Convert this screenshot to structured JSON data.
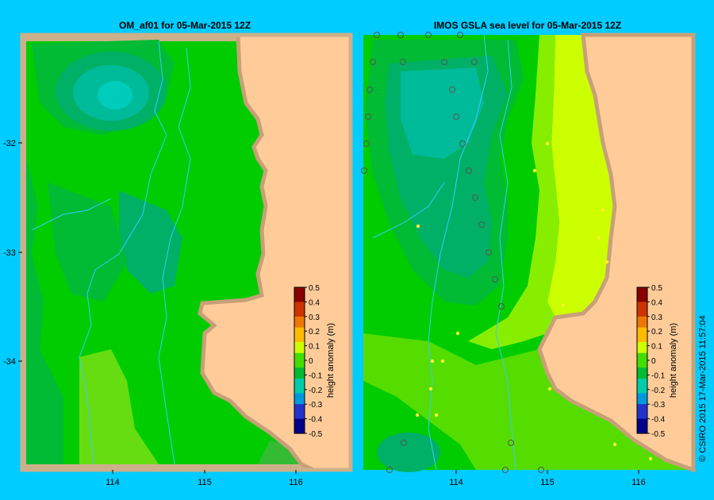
{
  "chart_data": [
    {
      "type": "heatmap",
      "title": "OM_af01  for 05-Mar-2015 12Z",
      "xticks": [
        "114",
        "115",
        "116"
      ],
      "yticks": [
        "-32",
        "-33",
        "-34"
      ],
      "xlim": [
        113.0,
        116.6
      ],
      "ylim": [
        -35.0,
        -31.0
      ],
      "colorbar": {
        "label": "height anomaly (m)",
        "ticks": [
          "0.5",
          "0.4",
          "0.3",
          "0.2",
          "0.1",
          "0",
          "-0.1",
          "-0.2",
          "-0.3",
          "-0.4",
          "-0.5"
        ],
        "range": [
          -0.5,
          0.5
        ]
      }
    },
    {
      "type": "heatmap",
      "title": "IMOS GSLA sea level  for 05-Mar-2015 12Z",
      "xticks": [
        "114",
        "115",
        "116"
      ],
      "yticks": [],
      "xlim": [
        112.95,
        116.55
      ],
      "ylim": [
        -35.0,
        -31.0
      ],
      "colorbar": {
        "label": "height anomaly (m)",
        "ticks": [
          "0.5",
          "0.4",
          "0.3",
          "0.2",
          "0.1",
          "0",
          "-0.1",
          "-0.2",
          "-0.3",
          "-0.4",
          "-0.5"
        ],
        "range": [
          -0.5,
          0.5
        ]
      }
    }
  ],
  "credit": "© CSIRO 2015   17-Mar-2015 11:57:04",
  "colors": {
    "page_bg": "#00ccff",
    "land": "#ffcc99",
    "coast": "#c8a078",
    "frame": "#ccb08a",
    "anom_0": "#00cc00",
    "anom_neg005": "#00bb33",
    "anom_neg01": "#00b066",
    "anom_neg015": "#00bb99",
    "anom_neg02": "#00ccbb",
    "anom_pos005": "#33dd00",
    "anom_pos01": "#88ee00",
    "anom_pos015": "#ccff00",
    "bathy": "#33ccff"
  }
}
